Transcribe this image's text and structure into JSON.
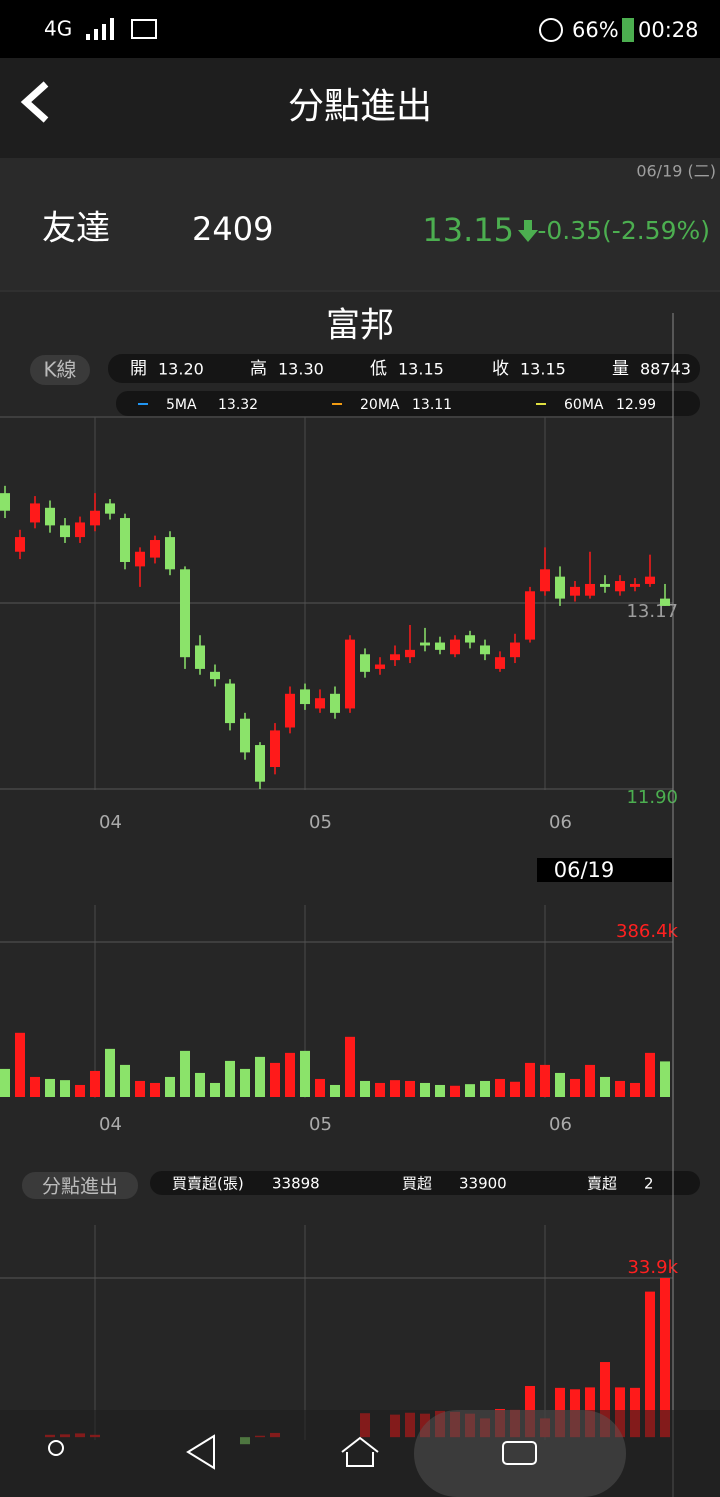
{
  "status_bar": {
    "network": "4G",
    "battery": "66%",
    "time": "00:28"
  },
  "header": {
    "title": "分點進出"
  },
  "quote": {
    "date": "06/19 (二)",
    "name": "友達",
    "code": "2409",
    "price": "13.15",
    "change": "-0.35(-2.59%)"
  },
  "broker": "富邦",
  "kline_panel": {
    "tab": "K線",
    "ohlc": [
      {
        "label": "開",
        "value": "13.20"
      },
      {
        "label": "高",
        "value": "13.30"
      },
      {
        "label": "低",
        "value": "13.15"
      },
      {
        "label": "收",
        "value": "13.15"
      },
      {
        "label": "量",
        "value": "88743"
      }
    ],
    "ma": [
      {
        "name": "5MA",
        "value": "13.32",
        "color": "#2196f3"
      },
      {
        "name": "20MA",
        "value": "13.11",
        "color": "#f39c12"
      },
      {
        "name": "60MA",
        "value": "12.99",
        "color": "#e0e040"
      }
    ]
  },
  "cursor_label": "06/19",
  "flow_panel": {
    "tab": "分點進出",
    "stats": [
      {
        "label": "買賣超(張)",
        "value": "33898"
      },
      {
        "label": "買超",
        "value": "33900"
      },
      {
        "label": "賣超",
        "value": "2"
      }
    ]
  },
  "chart_data": [
    {
      "type": "candlestick",
      "categories": [
        null,
        null,
        null,
        null,
        null,
        null,
        "04",
        null,
        null,
        null,
        null,
        null,
        null,
        null,
        null,
        null,
        null,
        null,
        null,
        null,
        "05",
        null,
        null,
        null,
        null,
        null,
        null,
        null,
        null,
        null,
        null,
        null,
        null,
        null,
        null,
        null,
        "06",
        null,
        null,
        null,
        null,
        null,
        null,
        null,
        null
      ],
      "open": [
        13.92,
        13.52,
        13.72,
        13.82,
        13.7,
        13.62,
        13.7,
        13.85,
        13.75,
        13.42,
        13.48,
        13.62,
        13.4,
        12.88,
        12.7,
        12.62,
        12.38,
        12.2,
        12.05,
        12.32,
        12.58,
        12.45,
        12.55,
        12.45,
        12.82,
        12.72,
        12.78,
        12.8,
        12.9,
        12.9,
        12.82,
        12.95,
        12.88,
        12.72,
        12.8,
        12.92,
        13.25,
        13.35,
        13.22,
        13.22,
        13.3,
        13.25,
        13.28,
        13.3,
        13.2
      ],
      "high": [
        13.97,
        13.67,
        13.9,
        13.87,
        13.75,
        13.76,
        13.92,
        13.88,
        13.78,
        13.55,
        13.63,
        13.66,
        13.42,
        12.95,
        12.75,
        12.65,
        12.42,
        12.22,
        12.35,
        12.6,
        12.62,
        12.58,
        12.6,
        12.95,
        12.86,
        12.8,
        12.88,
        13.02,
        13.0,
        12.94,
        12.95,
        12.98,
        12.92,
        12.84,
        12.96,
        13.28,
        13.55,
        13.42,
        13.32,
        13.52,
        13.36,
        13.36,
        13.34,
        13.5,
        13.3
      ],
      "low": [
        13.75,
        13.47,
        13.68,
        13.65,
        13.58,
        13.58,
        13.66,
        13.74,
        13.4,
        13.28,
        13.44,
        13.36,
        12.72,
        12.68,
        12.6,
        12.3,
        12.1,
        11.9,
        12.0,
        12.28,
        12.44,
        12.42,
        12.38,
        12.42,
        12.66,
        12.68,
        12.74,
        12.76,
        12.84,
        12.82,
        12.8,
        12.86,
        12.78,
        12.7,
        12.76,
        12.9,
        13.22,
        13.15,
        13.18,
        13.2,
        13.24,
        13.22,
        13.25,
        13.28,
        13.15
      ],
      "close": [
        13.8,
        13.62,
        13.85,
        13.7,
        13.62,
        13.72,
        13.8,
        13.78,
        13.45,
        13.52,
        13.6,
        13.4,
        12.8,
        12.72,
        12.65,
        12.35,
        12.15,
        11.95,
        12.3,
        12.55,
        12.48,
        12.52,
        12.42,
        12.92,
        12.7,
        12.75,
        12.82,
        12.85,
        12.88,
        12.85,
        12.92,
        12.9,
        12.82,
        12.8,
        12.9,
        13.25,
        13.4,
        13.2,
        13.28,
        13.3,
        13.28,
        13.32,
        13.3,
        13.35,
        13.15
      ],
      "ylim": [
        11.9,
        14.44
      ],
      "yticks": [
        13.17,
        {
          "value": 11.9,
          "label": "11.90"
        }
      ],
      "ytick_colors": [
        "#9e9e9e",
        "#4caf50"
      ],
      "up_color": "#ff1a1a",
      "down_color": "#8be36a",
      "grid": true
    },
    {
      "type": "bar",
      "categories": [
        null,
        null,
        null,
        null,
        null,
        null,
        "04",
        null,
        null,
        null,
        null,
        null,
        null,
        null,
        null,
        null,
        null,
        null,
        null,
        null,
        "05",
        null,
        null,
        null,
        null,
        null,
        null,
        null,
        null,
        null,
        null,
        null,
        null,
        null,
        null,
        null,
        "06",
        null,
        null,
        null,
        null,
        null,
        null,
        null,
        null
      ],
      "values": [
        70000,
        160000,
        50000,
        45000,
        42000,
        30000,
        65000,
        120000,
        80000,
        40000,
        35000,
        50000,
        115000,
        60000,
        35000,
        90000,
        70000,
        100000,
        85000,
        110000,
        115000,
        45000,
        30000,
        150000,
        40000,
        35000,
        42000,
        40000,
        35000,
        30000,
        28000,
        32000,
        40000,
        45000,
        38000,
        85000,
        80000,
        60000,
        45000,
        80000,
        50000,
        40000,
        35000,
        110000,
        88743
      ],
      "ylim": [
        0,
        386400
      ],
      "yticks": [
        {
          "value": 386400,
          "label": "386.4k"
        }
      ],
      "grid": true
    },
    {
      "type": "bar",
      "values": [
        0,
        0,
        0,
        500,
        600,
        800,
        500,
        0,
        0,
        0,
        0,
        0,
        0,
        0,
        0,
        0,
        -1500,
        300,
        900,
        0,
        0,
        0,
        0,
        0,
        5100,
        0,
        4800,
        5200,
        5000,
        5600,
        5400,
        5000,
        4000,
        6000,
        5800,
        10900,
        4000,
        10500,
        10200,
        10600,
        16000,
        10600,
        10500,
        31000,
        33898
      ],
      "ylim": [
        -3800,
        33900
      ],
      "yticks": [
        {
          "value": 33900,
          "label": "33.9k"
        }
      ],
      "grid": true
    }
  ]
}
